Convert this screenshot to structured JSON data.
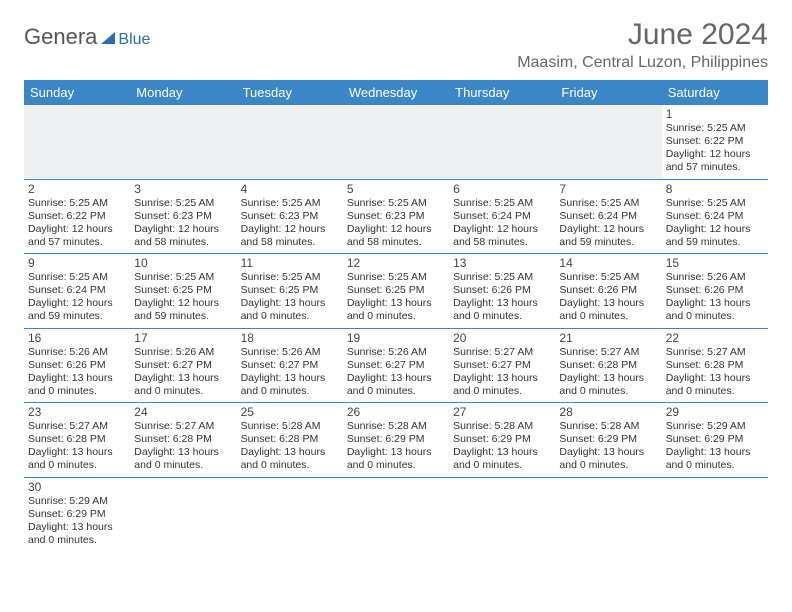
{
  "logo": {
    "text1": "Genera",
    "text2": "Blue"
  },
  "title": "June 2024",
  "location": "Maasim, Central Luzon, Philippines",
  "day_headers": [
    "Sunday",
    "Monday",
    "Tuesday",
    "Wednesday",
    "Thursday",
    "Friday",
    "Saturday"
  ],
  "colors": {
    "header_bg": "#3b86c6",
    "accent": "#2a6db0",
    "text": "#333333",
    "muted": "#666666"
  },
  "weeks": [
    [
      {
        "n": "",
        "sr": "",
        "ss": "",
        "dl": ""
      },
      {
        "n": "",
        "sr": "",
        "ss": "",
        "dl": ""
      },
      {
        "n": "",
        "sr": "",
        "ss": "",
        "dl": ""
      },
      {
        "n": "",
        "sr": "",
        "ss": "",
        "dl": ""
      },
      {
        "n": "",
        "sr": "",
        "ss": "",
        "dl": ""
      },
      {
        "n": "",
        "sr": "",
        "ss": "",
        "dl": ""
      },
      {
        "n": "1",
        "sr": "Sunrise: 5:25 AM",
        "ss": "Sunset: 6:22 PM",
        "dl": "Daylight: 12 hours and 57 minutes."
      }
    ],
    [
      {
        "n": "2",
        "sr": "Sunrise: 5:25 AM",
        "ss": "Sunset: 6:22 PM",
        "dl": "Daylight: 12 hours and 57 minutes."
      },
      {
        "n": "3",
        "sr": "Sunrise: 5:25 AM",
        "ss": "Sunset: 6:23 PM",
        "dl": "Daylight: 12 hours and 58 minutes."
      },
      {
        "n": "4",
        "sr": "Sunrise: 5:25 AM",
        "ss": "Sunset: 6:23 PM",
        "dl": "Daylight: 12 hours and 58 minutes."
      },
      {
        "n": "5",
        "sr": "Sunrise: 5:25 AM",
        "ss": "Sunset: 6:23 PM",
        "dl": "Daylight: 12 hours and 58 minutes."
      },
      {
        "n": "6",
        "sr": "Sunrise: 5:25 AM",
        "ss": "Sunset: 6:24 PM",
        "dl": "Daylight: 12 hours and 58 minutes."
      },
      {
        "n": "7",
        "sr": "Sunrise: 5:25 AM",
        "ss": "Sunset: 6:24 PM",
        "dl": "Daylight: 12 hours and 59 minutes."
      },
      {
        "n": "8",
        "sr": "Sunrise: 5:25 AM",
        "ss": "Sunset: 6:24 PM",
        "dl": "Daylight: 12 hours and 59 minutes."
      }
    ],
    [
      {
        "n": "9",
        "sr": "Sunrise: 5:25 AM",
        "ss": "Sunset: 6:24 PM",
        "dl": "Daylight: 12 hours and 59 minutes."
      },
      {
        "n": "10",
        "sr": "Sunrise: 5:25 AM",
        "ss": "Sunset: 6:25 PM",
        "dl": "Daylight: 12 hours and 59 minutes."
      },
      {
        "n": "11",
        "sr": "Sunrise: 5:25 AM",
        "ss": "Sunset: 6:25 PM",
        "dl": "Daylight: 13 hours and 0 minutes."
      },
      {
        "n": "12",
        "sr": "Sunrise: 5:25 AM",
        "ss": "Sunset: 6:25 PM",
        "dl": "Daylight: 13 hours and 0 minutes."
      },
      {
        "n": "13",
        "sr": "Sunrise: 5:25 AM",
        "ss": "Sunset: 6:26 PM",
        "dl": "Daylight: 13 hours and 0 minutes."
      },
      {
        "n": "14",
        "sr": "Sunrise: 5:25 AM",
        "ss": "Sunset: 6:26 PM",
        "dl": "Daylight: 13 hours and 0 minutes."
      },
      {
        "n": "15",
        "sr": "Sunrise: 5:26 AM",
        "ss": "Sunset: 6:26 PM",
        "dl": "Daylight: 13 hours and 0 minutes."
      }
    ],
    [
      {
        "n": "16",
        "sr": "Sunrise: 5:26 AM",
        "ss": "Sunset: 6:26 PM",
        "dl": "Daylight: 13 hours and 0 minutes."
      },
      {
        "n": "17",
        "sr": "Sunrise: 5:26 AM",
        "ss": "Sunset: 6:27 PM",
        "dl": "Daylight: 13 hours and 0 minutes."
      },
      {
        "n": "18",
        "sr": "Sunrise: 5:26 AM",
        "ss": "Sunset: 6:27 PM",
        "dl": "Daylight: 13 hours and 0 minutes."
      },
      {
        "n": "19",
        "sr": "Sunrise: 5:26 AM",
        "ss": "Sunset: 6:27 PM",
        "dl": "Daylight: 13 hours and 0 minutes."
      },
      {
        "n": "20",
        "sr": "Sunrise: 5:27 AM",
        "ss": "Sunset: 6:27 PM",
        "dl": "Daylight: 13 hours and 0 minutes."
      },
      {
        "n": "21",
        "sr": "Sunrise: 5:27 AM",
        "ss": "Sunset: 6:28 PM",
        "dl": "Daylight: 13 hours and 0 minutes."
      },
      {
        "n": "22",
        "sr": "Sunrise: 5:27 AM",
        "ss": "Sunset: 6:28 PM",
        "dl": "Daylight: 13 hours and 0 minutes."
      }
    ],
    [
      {
        "n": "23",
        "sr": "Sunrise: 5:27 AM",
        "ss": "Sunset: 6:28 PM",
        "dl": "Daylight: 13 hours and 0 minutes."
      },
      {
        "n": "24",
        "sr": "Sunrise: 5:27 AM",
        "ss": "Sunset: 6:28 PM",
        "dl": "Daylight: 13 hours and 0 minutes."
      },
      {
        "n": "25",
        "sr": "Sunrise: 5:28 AM",
        "ss": "Sunset: 6:28 PM",
        "dl": "Daylight: 13 hours and 0 minutes."
      },
      {
        "n": "26",
        "sr": "Sunrise: 5:28 AM",
        "ss": "Sunset: 6:29 PM",
        "dl": "Daylight: 13 hours and 0 minutes."
      },
      {
        "n": "27",
        "sr": "Sunrise: 5:28 AM",
        "ss": "Sunset: 6:29 PM",
        "dl": "Daylight: 13 hours and 0 minutes."
      },
      {
        "n": "28",
        "sr": "Sunrise: 5:28 AM",
        "ss": "Sunset: 6:29 PM",
        "dl": "Daylight: 13 hours and 0 minutes."
      },
      {
        "n": "29",
        "sr": "Sunrise: 5:29 AM",
        "ss": "Sunset: 6:29 PM",
        "dl": "Daylight: 13 hours and 0 minutes."
      }
    ],
    [
      {
        "n": "30",
        "sr": "Sunrise: 5:29 AM",
        "ss": "Sunset: 6:29 PM",
        "dl": "Daylight: 13 hours and 0 minutes."
      },
      {
        "n": "",
        "sr": "",
        "ss": "",
        "dl": ""
      },
      {
        "n": "",
        "sr": "",
        "ss": "",
        "dl": ""
      },
      {
        "n": "",
        "sr": "",
        "ss": "",
        "dl": ""
      },
      {
        "n": "",
        "sr": "",
        "ss": "",
        "dl": ""
      },
      {
        "n": "",
        "sr": "",
        "ss": "",
        "dl": ""
      },
      {
        "n": "",
        "sr": "",
        "ss": "",
        "dl": ""
      }
    ]
  ]
}
